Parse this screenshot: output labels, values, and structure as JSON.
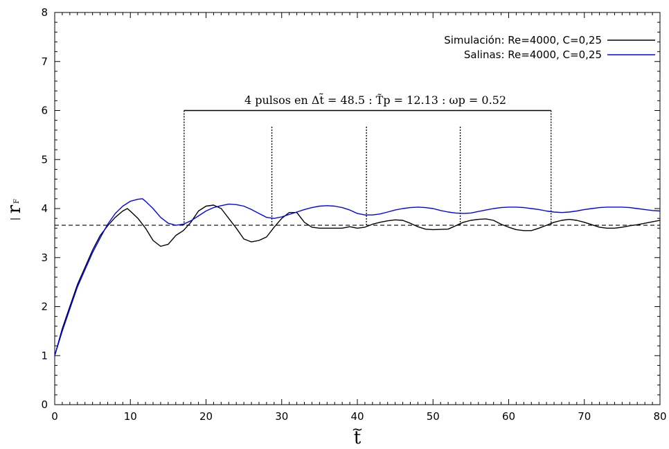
{
  "chart_data": {
    "type": "line",
    "xlim": [
      0,
      80
    ],
    "ylim": [
      0,
      8
    ],
    "x_ticks": [
      0,
      10,
      20,
      30,
      40,
      50,
      60,
      70,
      80
    ],
    "y_ticks": [
      0,
      1,
      2,
      3,
      4,
      5,
      6,
      7,
      8
    ],
    "xlabel": "t",
    "ylabel": "r",
    "ylabel_subscript": "F",
    "grid": false,
    "legend_position": "top-right",
    "series": [
      {
        "name": "Simulación: Re=4000, C=0,25",
        "color": "#000000",
        "points": [
          [
            0,
            1.0
          ],
          [
            1,
            1.55
          ],
          [
            2,
            2.0
          ],
          [
            3,
            2.45
          ],
          [
            4,
            2.8
          ],
          [
            5,
            3.15
          ],
          [
            6,
            3.45
          ],
          [
            7,
            3.65
          ],
          [
            8,
            3.82
          ],
          [
            9,
            3.95
          ],
          [
            9.6,
            4.0
          ],
          [
            10.2,
            3.92
          ],
          [
            11,
            3.8
          ],
          [
            12,
            3.6
          ],
          [
            13,
            3.35
          ],
          [
            14,
            3.23
          ],
          [
            15,
            3.27
          ],
          [
            16,
            3.45
          ],
          [
            17,
            3.55
          ],
          [
            18,
            3.72
          ],
          [
            19,
            3.95
          ],
          [
            20,
            4.05
          ],
          [
            21,
            4.07
          ],
          [
            22,
            4.0
          ],
          [
            23,
            3.8
          ],
          [
            24,
            3.6
          ],
          [
            25,
            3.38
          ],
          [
            26,
            3.32
          ],
          [
            27,
            3.35
          ],
          [
            28,
            3.42
          ],
          [
            29,
            3.62
          ],
          [
            30,
            3.8
          ],
          [
            31,
            3.92
          ],
          [
            32,
            3.92
          ],
          [
            33,
            3.72
          ],
          [
            34,
            3.62
          ],
          [
            35,
            3.6
          ],
          [
            36,
            3.6
          ],
          [
            38,
            3.6
          ],
          [
            39,
            3.63
          ],
          [
            40,
            3.6
          ],
          [
            41,
            3.62
          ],
          [
            42,
            3.68
          ],
          [
            43,
            3.72
          ],
          [
            44,
            3.75
          ],
          [
            45,
            3.77
          ],
          [
            46,
            3.76
          ],
          [
            47,
            3.7
          ],
          [
            48,
            3.63
          ],
          [
            49,
            3.58
          ],
          [
            50,
            3.57
          ],
          [
            52,
            3.58
          ],
          [
            53,
            3.65
          ],
          [
            54,
            3.72
          ],
          [
            55,
            3.76
          ],
          [
            56,
            3.78
          ],
          [
            57,
            3.79
          ],
          [
            58,
            3.76
          ],
          [
            59,
            3.68
          ],
          [
            60,
            3.62
          ],
          [
            61,
            3.57
          ],
          [
            62,
            3.55
          ],
          [
            63,
            3.55
          ],
          [
            64,
            3.6
          ],
          [
            65,
            3.66
          ],
          [
            66,
            3.72
          ],
          [
            67,
            3.76
          ],
          [
            68,
            3.78
          ],
          [
            69,
            3.76
          ],
          [
            70,
            3.72
          ],
          [
            71,
            3.67
          ],
          [
            72,
            3.62
          ],
          [
            73,
            3.6
          ],
          [
            74,
            3.6
          ],
          [
            75,
            3.62
          ],
          [
            76,
            3.65
          ],
          [
            77,
            3.67
          ],
          [
            78,
            3.7
          ],
          [
            79,
            3.73
          ],
          [
            80,
            3.76
          ]
        ]
      },
      {
        "name": "Salinas: Re=4000, C=0,25",
        "color": "#0000ff",
        "points": [
          [
            0,
            1.0
          ],
          [
            1,
            1.5
          ],
          [
            2,
            1.95
          ],
          [
            3,
            2.4
          ],
          [
            4,
            2.75
          ],
          [
            5,
            3.1
          ],
          [
            6,
            3.4
          ],
          [
            7,
            3.68
          ],
          [
            8,
            3.9
          ],
          [
            9,
            4.05
          ],
          [
            10,
            4.15
          ],
          [
            11,
            4.19
          ],
          [
            11.6,
            4.2
          ],
          [
            12,
            4.15
          ],
          [
            13,
            4.0
          ],
          [
            14,
            3.82
          ],
          [
            15,
            3.7
          ],
          [
            16,
            3.66
          ],
          [
            17,
            3.68
          ],
          [
            18,
            3.75
          ],
          [
            19,
            3.85
          ],
          [
            20,
            3.95
          ],
          [
            21,
            4.02
          ],
          [
            22,
            4.06
          ],
          [
            23,
            4.09
          ],
          [
            24,
            4.08
          ],
          [
            25,
            4.05
          ],
          [
            26,
            3.98
          ],
          [
            27,
            3.9
          ],
          [
            28,
            3.82
          ],
          [
            29,
            3.8
          ],
          [
            30,
            3.83
          ],
          [
            31,
            3.88
          ],
          [
            32,
            3.93
          ],
          [
            33,
            3.98
          ],
          [
            34,
            4.02
          ],
          [
            35,
            4.05
          ],
          [
            36,
            4.06
          ],
          [
            37,
            4.05
          ],
          [
            38,
            4.02
          ],
          [
            39,
            3.97
          ],
          [
            40,
            3.9
          ],
          [
            41,
            3.87
          ],
          [
            42,
            3.87
          ],
          [
            43,
            3.89
          ],
          [
            44,
            3.93
          ],
          [
            45,
            3.97
          ],
          [
            46,
            4.0
          ],
          [
            47,
            4.02
          ],
          [
            48,
            4.03
          ],
          [
            49,
            4.02
          ],
          [
            50,
            4.0
          ],
          [
            51,
            3.96
          ],
          [
            52,
            3.93
          ],
          [
            53,
            3.91
          ],
          [
            54,
            3.9
          ],
          [
            55,
            3.91
          ],
          [
            56,
            3.94
          ],
          [
            57,
            3.97
          ],
          [
            58,
            4.0
          ],
          [
            59,
            4.02
          ],
          [
            60,
            4.03
          ],
          [
            61,
            4.03
          ],
          [
            62,
            4.02
          ],
          [
            63,
            4.0
          ],
          [
            64,
            3.98
          ],
          [
            65,
            3.95
          ],
          [
            66,
            3.93
          ],
          [
            67,
            3.92
          ],
          [
            68,
            3.93
          ],
          [
            69,
            3.95
          ],
          [
            70,
            3.98
          ],
          [
            71,
            4.0
          ],
          [
            72,
            4.02
          ],
          [
            73,
            4.03
          ],
          [
            74,
            4.03
          ],
          [
            75,
            4.03
          ],
          [
            76,
            4.02
          ],
          [
            77,
            4.0
          ],
          [
            78,
            3.98
          ],
          [
            79,
            3.96
          ],
          [
            80,
            3.95
          ]
        ]
      }
    ],
    "reference_lines": {
      "horizontal_y": 3.66,
      "bracket_y": 6.0,
      "bracket_x": [
        17.1,
        65.6
      ],
      "bracket_marker_x": [
        17.1,
        65.6
      ],
      "pulse_markers_x": [
        28.7,
        41.2,
        53.6
      ],
      "pulse_marker_top": 5.67
    },
    "annotation": {
      "text": "4 pulsos en Δt̃ = 48.5  :  T̃p = 12.13  :  ωp = 0.52"
    }
  }
}
